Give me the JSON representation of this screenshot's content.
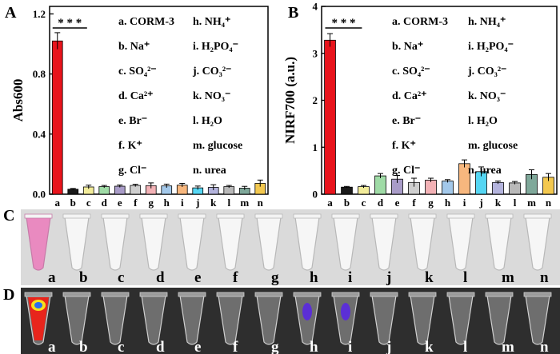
{
  "panels": {
    "A": "A",
    "B": "B",
    "C": "C",
    "D": "D"
  },
  "significance": "* * *",
  "chart_data": [
    {
      "type": "bar",
      "panel": "A",
      "ylabel": "Abs600",
      "xlabel": "",
      "categories": [
        "a",
        "b",
        "c",
        "d",
        "e",
        "f",
        "g",
        "h",
        "i",
        "j",
        "k",
        "l",
        "m",
        "n"
      ],
      "values": [
        1.02,
        0.033,
        0.048,
        0.05,
        0.053,
        0.058,
        0.057,
        0.055,
        0.06,
        0.042,
        0.045,
        0.05,
        0.04,
        0.072
      ],
      "errors": [
        0.055,
        0.005,
        0.012,
        0.008,
        0.008,
        0.008,
        0.018,
        0.012,
        0.012,
        0.012,
        0.018,
        0.008,
        0.012,
        0.022
      ],
      "ylim": [
        0,
        1.25
      ],
      "yticks": [
        0.0,
        0.4,
        0.8,
        1.2
      ],
      "ytick_labels": [
        "0.0",
        "0.4",
        "0.8",
        "1.2"
      ]
    },
    {
      "type": "bar",
      "panel": "B",
      "ylabel": "NIRF700 (a.u.)",
      "xlabel": "",
      "categories": [
        "a",
        "b",
        "c",
        "d",
        "e",
        "f",
        "g",
        "h",
        "i",
        "j",
        "k",
        "l",
        "m",
        "n"
      ],
      "values": [
        3.28,
        0.15,
        0.16,
        0.39,
        0.32,
        0.25,
        0.3,
        0.28,
        0.65,
        0.48,
        0.25,
        0.24,
        0.42,
        0.36
      ],
      "errors": [
        0.14,
        0.015,
        0.025,
        0.05,
        0.08,
        0.09,
        0.04,
        0.03,
        0.08,
        0.1,
        0.03,
        0.03,
        0.1,
        0.08
      ],
      "ylim": [
        0,
        4
      ],
      "yticks": [
        0,
        1,
        2,
        3,
        4
      ],
      "ytick_labels": [
        "0",
        "1",
        "2",
        "3",
        "4"
      ]
    }
  ],
  "bar_colors": [
    "#e8141c",
    "#1a1a1a",
    "#f2ec9a",
    "#9fdba6",
    "#a99cc8",
    "#cfcfcf",
    "#f3b2b6",
    "#a3c8ea",
    "#f7b77e",
    "#55d6f3",
    "#b4b4dd",
    "#b9b9b9",
    "#7fa89a",
    "#f3c84f"
  ],
  "legend_items": [
    {
      "key": "a",
      "text": "CORM-3"
    },
    {
      "key": "b",
      "text": "Na⁺"
    },
    {
      "key": "c",
      "text": "SO₄²⁻"
    },
    {
      "key": "d",
      "text": "Ca²⁺"
    },
    {
      "key": "e",
      "text": "Br⁻"
    },
    {
      "key": "f",
      "text": "K⁺"
    },
    {
      "key": "g",
      "text": "Cl⁻"
    },
    {
      "key": "h",
      "text": "NH₄⁺"
    },
    {
      "key": "i",
      "text": "H₂PO₄⁻"
    },
    {
      "key": "j",
      "text": "CO₃²⁻"
    },
    {
      "key": "k",
      "text": "NO₃⁻"
    },
    {
      "key": "l",
      "text": "H₂O"
    },
    {
      "key": "m",
      "text": "glucose"
    },
    {
      "key": "n",
      "text": "urea"
    }
  ],
  "tube_labels": [
    "a",
    "b",
    "c",
    "d",
    "e",
    "f",
    "g",
    "h",
    "i",
    "j",
    "k",
    "l",
    "m",
    "n"
  ]
}
